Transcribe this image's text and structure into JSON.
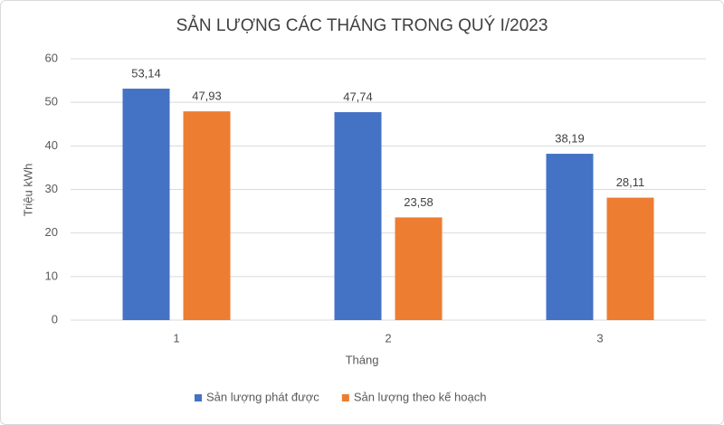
{
  "chart_data": {
    "type": "bar",
    "title": "SẢN LƯỢNG CÁC THÁNG TRONG QUÝ I/2023",
    "x_label": "Tháng",
    "y_label": "Triệu kWh",
    "categories": [
      "1",
      "2",
      "3"
    ],
    "series": [
      {
        "name": "Sản lượng phát được",
        "color": "#4472c4",
        "values": [
          53.14,
          47.74,
          38.19
        ],
        "value_labels": [
          "53,14",
          "47,74",
          "38,19"
        ]
      },
      {
        "name": "Sản lượng theo kế hoạch",
        "color": "#ed7d31",
        "values": [
          47.93,
          23.58,
          28.11
        ],
        "value_labels": [
          "47,93",
          "23,58",
          "28,11"
        ]
      }
    ],
    "ylim": [
      0,
      60
    ],
    "yticks": [
      0,
      10,
      20,
      30,
      40,
      50,
      60
    ],
    "grid": true,
    "legend": "bottom"
  }
}
